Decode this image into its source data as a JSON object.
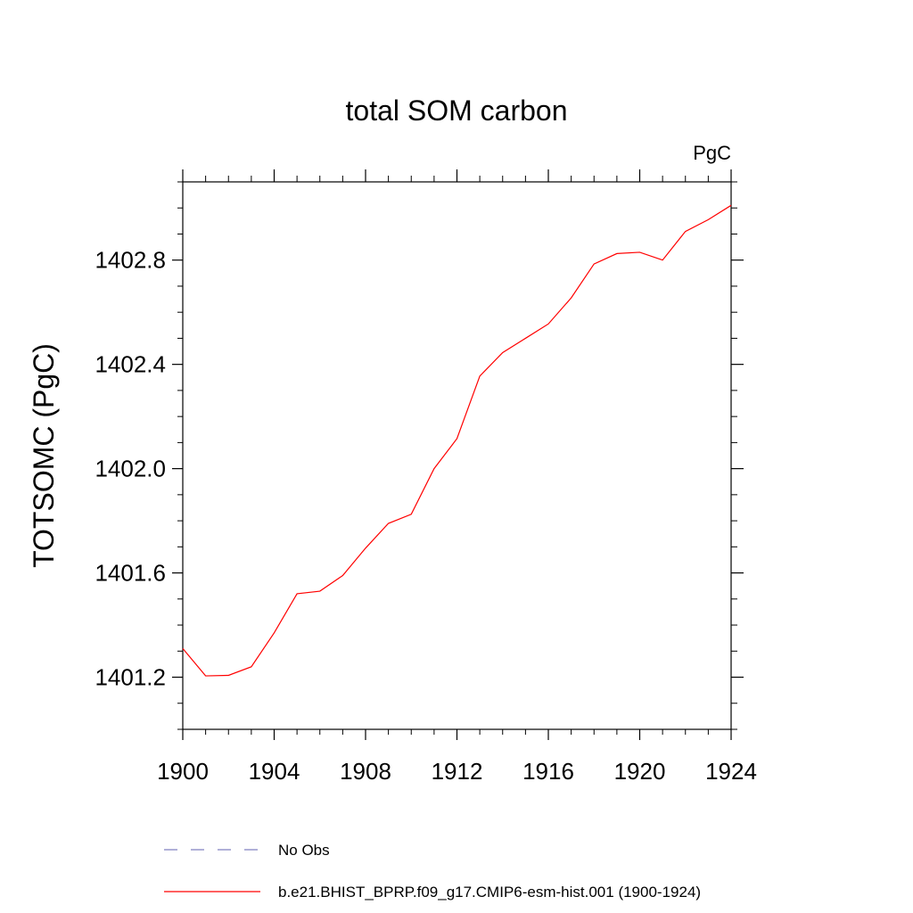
{
  "chart_data": {
    "type": "line",
    "title": "total SOM carbon",
    "unit_label": "PgC",
    "ylabel": "TOTSOMC  (PgC)",
    "xlabel": "",
    "xlim": [
      1900,
      1924
    ],
    "ylim": [
      1401.0,
      1403.1
    ],
    "x_ticks": [
      1900,
      1904,
      1908,
      1912,
      1916,
      1920,
      1924
    ],
    "x_tick_labels": [
      "1900",
      "1904",
      "1908",
      "1912",
      "1916",
      "1920",
      "1924"
    ],
    "y_ticks": [
      1401.2,
      1401.6,
      1402.0,
      1402.4,
      1402.8
    ],
    "y_tick_labels": [
      "1401.2",
      "1401.6",
      "1402.0",
      "1402.4",
      "1402.8"
    ],
    "grid": false,
    "legend_position": "bottom",
    "series": [
      {
        "name": "b.e21.BHIST_BPRP.f09_g17.CMIP6-esm-hist.001 (1900-1924)",
        "color": "#ff0000",
        "style": "solid",
        "x": [
          1900,
          1901,
          1902,
          1903,
          1904,
          1905,
          1906,
          1907,
          1908,
          1909,
          1910,
          1911,
          1912,
          1913,
          1914,
          1915,
          1916,
          1917,
          1918,
          1919,
          1920,
          1921,
          1922,
          1923,
          1924
        ],
        "values": [
          1401.31,
          1401.205,
          1401.207,
          1401.24,
          1401.37,
          1401.52,
          1401.53,
          1401.59,
          1401.695,
          1401.79,
          1401.825,
          1402.0,
          1402.115,
          1402.355,
          1402.445,
          1402.5,
          1402.555,
          1402.655,
          1402.785,
          1402.825,
          1402.83,
          1402.8,
          1402.91,
          1402.955,
          1403.01
        ]
      }
    ],
    "legend": [
      {
        "label": "No Obs",
        "color": "#8080c0",
        "style": "dashed"
      },
      {
        "label": "b.e21.BHIST_BPRP.f09_g17.CMIP6-esm-hist.001 (1900-1924)",
        "color": "#ff0000",
        "style": "solid"
      }
    ]
  }
}
